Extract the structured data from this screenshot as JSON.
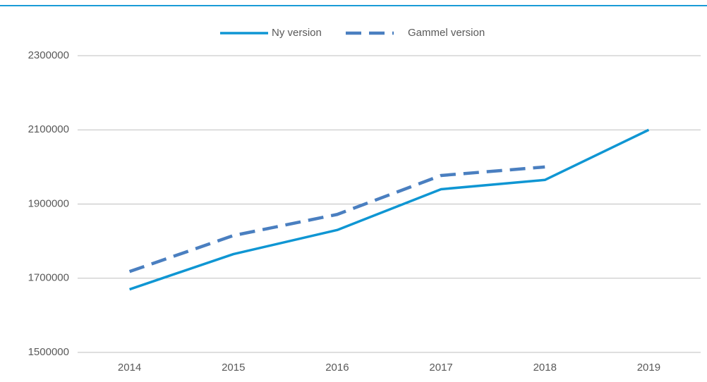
{
  "chart_data": {
    "type": "line",
    "categories": [
      "2014",
      "2015",
      "2016",
      "2017",
      "2018",
      "2019"
    ],
    "series": [
      {
        "name": "Ny version",
        "color": "#0f96d3",
        "dash": false,
        "values": [
          1670000,
          1765000,
          1830000,
          1940000,
          1965000,
          2100000
        ]
      },
      {
        "name": "Gammel version",
        "color": "#4a7fc0",
        "dash": true,
        "values": [
          1718000,
          1815000,
          1872000,
          1977000,
          2000000,
          null
        ]
      }
    ],
    "ylim": [
      1500000,
      2300000
    ],
    "yticks": [
      1500000,
      1700000,
      1900000,
      2100000,
      2300000
    ],
    "grid": true,
    "legend": "top"
  }
}
